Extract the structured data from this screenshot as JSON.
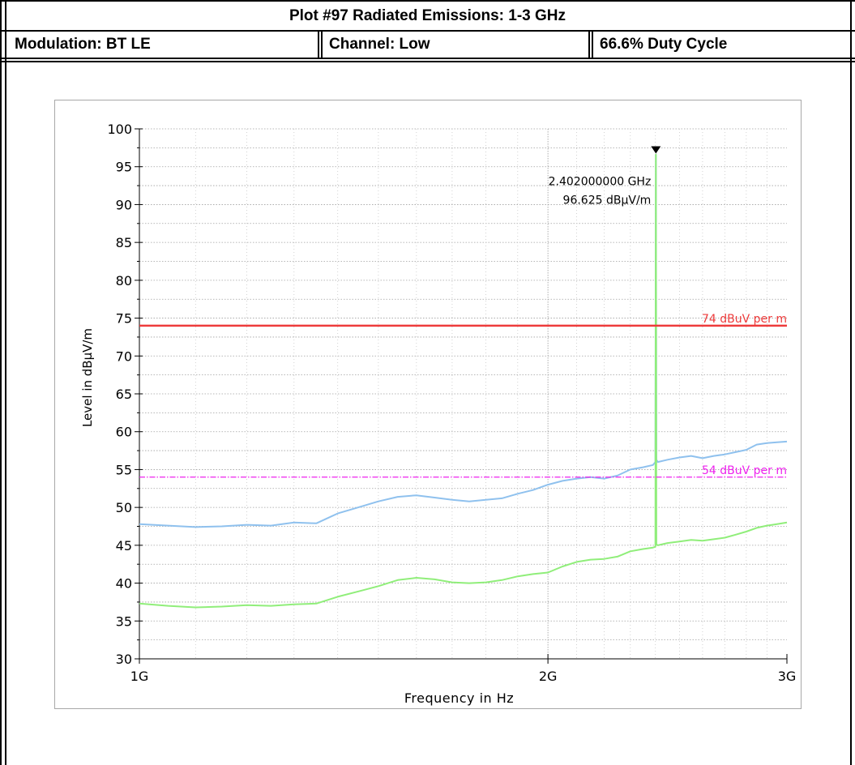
{
  "header": {
    "title": "Plot #97 Radiated Emissions: 1-3 GHz",
    "modulation": "Modulation: BT LE",
    "channel": "Channel: Low",
    "duty_cycle": "66.6% Duty Cycle"
  },
  "colors": {
    "peak_trace": "#8fc1ee",
    "average_trace": "#90ee7a",
    "peak_limit": "#ee3b3b",
    "average_limit": "#ee22ee",
    "grid": "#a0a0a0"
  },
  "chart_data": {
    "type": "line",
    "xlabel": "Frequency in Hz",
    "ylabel": "Level in dBµV/m",
    "x_scale": "log",
    "xlim": [
      1000000000,
      3000000000
    ],
    "ylim": [
      30,
      100
    ],
    "grid": true,
    "x_ticks": [
      {
        "value": 1000000000,
        "label": "1G"
      },
      {
        "value": 2000000000,
        "label": "2G"
      },
      {
        "value": 3000000000,
        "label": "3G"
      }
    ],
    "y_ticks": [
      {
        "value": 30,
        "label": "30"
      },
      {
        "value": 35,
        "label": "35"
      },
      {
        "value": 40,
        "label": "40"
      },
      {
        "value": 45,
        "label": "45"
      },
      {
        "value": 50,
        "label": "50"
      },
      {
        "value": 55,
        "label": "55"
      },
      {
        "value": 60,
        "label": "60"
      },
      {
        "value": 65,
        "label": "65"
      },
      {
        "value": 70,
        "label": "70"
      },
      {
        "value": 75,
        "label": "75"
      },
      {
        "value": 80,
        "label": "80"
      },
      {
        "value": 85,
        "label": "85"
      },
      {
        "value": 90,
        "label": "90"
      },
      {
        "value": 95,
        "label": "95"
      },
      {
        "value": 100,
        "label": "100"
      }
    ],
    "series": [
      {
        "color": "#8fc1ee",
        "x": [
          1000000000,
          1050000000,
          1100000000,
          1150000000,
          1200000000,
          1250000000,
          1300000000,
          1350000000,
          1400000000,
          1450000000,
          1500000000,
          1550000000,
          1600000000,
          1650000000,
          1700000000,
          1750000000,
          1800000000,
          1850000000,
          1900000000,
          1950000000,
          2000000000,
          2050000000,
          2100000000,
          2150000000,
          2200000000,
          2250000000,
          2300000000,
          2350000000,
          2390000000,
          2400000000,
          2402000000,
          2404000000,
          2410000000,
          2450000000,
          2500000000,
          2550000000,
          2600000000,
          2650000000,
          2700000000,
          2750000000,
          2800000000,
          2850000000,
          2900000000,
          2950000000,
          3000000000
        ],
        "values": [
          47.8,
          47.6,
          47.4,
          47.5,
          47.7,
          47.6,
          48.0,
          47.9,
          49.2,
          50.0,
          50.8,
          51.4,
          51.6,
          51.3,
          51.0,
          50.8,
          51.0,
          51.2,
          51.8,
          52.3,
          53.0,
          53.5,
          53.8,
          54.0,
          53.8,
          54.2,
          55.0,
          55.3,
          55.6,
          56.0,
          96.6,
          56.3,
          56.0,
          56.3,
          56.6,
          56.8,
          56.5,
          56.8,
          57.0,
          57.3,
          57.6,
          58.3,
          58.5,
          58.6,
          58.7
        ]
      },
      {
        "color": "#90ee7a",
        "x": [
          1000000000,
          1050000000,
          1100000000,
          1150000000,
          1200000000,
          1250000000,
          1300000000,
          1350000000,
          1400000000,
          1450000000,
          1500000000,
          1550000000,
          1600000000,
          1650000000,
          1700000000,
          1750000000,
          1800000000,
          1850000000,
          1900000000,
          1950000000,
          2000000000,
          2050000000,
          2100000000,
          2150000000,
          2200000000,
          2250000000,
          2300000000,
          2350000000,
          2390000000,
          2400000000,
          2402000000,
          2404000000,
          2410000000,
          2450000000,
          2500000000,
          2550000000,
          2600000000,
          2650000000,
          2700000000,
          2750000000,
          2800000000,
          2850000000,
          2900000000,
          2950000000,
          3000000000
        ],
        "values": [
          37.3,
          37.0,
          36.8,
          36.9,
          37.1,
          37.0,
          37.2,
          37.3,
          38.2,
          38.9,
          39.6,
          40.4,
          40.7,
          40.5,
          40.1,
          40.0,
          40.1,
          40.4,
          40.9,
          41.2,
          41.4,
          42.2,
          42.8,
          43.1,
          43.2,
          43.5,
          44.2,
          44.5,
          44.7,
          44.8,
          96.6,
          45.1,
          45.0,
          45.3,
          45.5,
          45.7,
          45.6,
          45.8,
          46.0,
          46.4,
          46.8,
          47.3,
          47.6,
          47.8,
          48.0
        ]
      }
    ],
    "limit_lines": [
      {
        "value": 74,
        "label": "74 dBuV per m",
        "color": "#ee3b3b",
        "style": "solid"
      },
      {
        "value": 54,
        "label": "54 dBuV per m",
        "color": "#ee22ee",
        "style": "dash-dot"
      }
    ],
    "marker": {
      "x": 2402000000,
      "y": 96.625,
      "freq_label": "2.402000000 GHz",
      "level_label": "96.625 dBµV/m"
    }
  }
}
